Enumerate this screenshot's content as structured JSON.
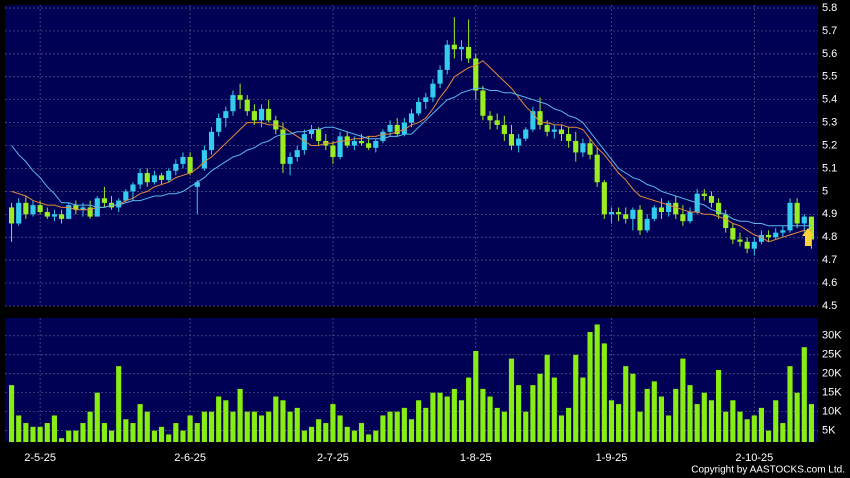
{
  "chart_data": {
    "type": "candlestick",
    "categories": [
      null,
      null,
      null,
      null,
      "2-5-25",
      null,
      null,
      null,
      null,
      null,
      null,
      null,
      null,
      null,
      null,
      null,
      null,
      null,
      null,
      null,
      null,
      null,
      null,
      null,
      null,
      "2-6-25",
      null,
      null,
      null,
      null,
      null,
      null,
      null,
      null,
      null,
      null,
      null,
      null,
      null,
      null,
      null,
      null,
      null,
      null,
      null,
      "2-7-25",
      null,
      null,
      null,
      null,
      null,
      null,
      null,
      null,
      null,
      null,
      null,
      null,
      null,
      null,
      null,
      null,
      null,
      null,
      null,
      "1-8-25",
      null,
      null,
      null,
      null,
      null,
      null,
      null,
      null,
      null,
      null,
      null,
      null,
      null,
      null,
      null,
      null,
      null,
      null,
      "1-9-25",
      null,
      null,
      null,
      null,
      null,
      null,
      null,
      null,
      null,
      null,
      null,
      null,
      null,
      null,
      null,
      null,
      null,
      null,
      null,
      "2-10-25",
      null,
      null,
      null,
      null,
      null,
      null,
      null,
      null
    ],
    "open": [
      4.93,
      4.86,
      4.95,
      4.9,
      4.94,
      4.91,
      4.89,
      4.9,
      4.88,
      4.94,
      4.92,
      4.93,
      4.89,
      4.97,
      4.95,
      4.93,
      4.96,
      5.0,
      5.03,
      5.08,
      5.04,
      5.07,
      5.05,
      5.09,
      5.12,
      5.15,
      5.02,
      5.1,
      5.18,
      5.26,
      5.32,
      5.35,
      5.42,
      5.4,
      5.35,
      5.31,
      5.36,
      5.31,
      5.27,
      5.12,
      5.15,
      5.18,
      5.25,
      5.27,
      5.22,
      5.2,
      5.15,
      5.24,
      5.2,
      5.22,
      5.21,
      5.19,
      5.22,
      5.26,
      5.29,
      5.25,
      5.3,
      5.34,
      5.39,
      5.41,
      5.47,
      5.53,
      5.64,
      5.62,
      5.63,
      5.58,
      5.44,
      5.33,
      5.31,
      5.29,
      5.25,
      5.2,
      5.23,
      5.27,
      5.35,
      5.29,
      5.26,
      5.27,
      5.25,
      5.22,
      5.17,
      5.21,
      5.16,
      5.04,
      4.9,
      4.91,
      4.9,
      4.88,
      4.92,
      4.83,
      4.88,
      4.93,
      4.91,
      4.95,
      4.9,
      4.87,
      4.91,
      4.99,
      4.98,
      4.95,
      4.9,
      4.84,
      4.79,
      4.78,
      4.75,
      4.78,
      4.81,
      4.8,
      4.82,
      4.83,
      4.95,
      4.86,
      4.89
    ],
    "high": [
      4.95,
      4.97,
      4.98,
      4.96,
      4.96,
      4.93,
      4.92,
      4.92,
      4.95,
      4.96,
      4.95,
      4.96,
      4.98,
      5.02,
      4.98,
      4.97,
      5.01,
      5.04,
      5.1,
      5.1,
      5.09,
      5.08,
      5.1,
      5.14,
      5.17,
      5.17,
      5.05,
      5.2,
      5.28,
      5.34,
      5.37,
      5.44,
      5.47,
      5.42,
      5.38,
      5.38,
      5.4,
      5.33,
      5.3,
      5.17,
      5.2,
      5.27,
      5.29,
      5.28,
      5.25,
      5.22,
      5.26,
      5.26,
      5.24,
      5.25,
      5.24,
      5.23,
      5.27,
      5.31,
      5.32,
      5.32,
      5.36,
      5.41,
      5.43,
      5.49,
      5.55,
      5.66,
      5.76,
      5.66,
      5.75,
      5.6,
      5.46,
      5.35,
      5.34,
      5.33,
      5.29,
      5.25,
      5.28,
      5.37,
      5.41,
      5.31,
      5.29,
      5.29,
      5.28,
      5.26,
      5.23,
      5.23,
      5.19,
      5.05,
      4.93,
      4.93,
      4.93,
      4.93,
      4.94,
      4.9,
      4.94,
      4.97,
      4.96,
      4.98,
      4.94,
      4.93,
      5.01,
      5.01,
      5.0,
      4.97,
      4.92,
      4.86,
      4.82,
      4.8,
      4.8,
      4.83,
      4.83,
      4.84,
      4.85,
      4.97,
      4.97,
      4.9,
      4.89
    ],
    "low": [
      4.78,
      4.85,
      4.88,
      4.89,
      4.9,
      4.88,
      4.87,
      4.86,
      4.88,
      4.9,
      4.89,
      4.88,
      4.89,
      4.93,
      4.92,
      4.91,
      4.95,
      4.96,
      5.01,
      5.02,
      5.03,
      5.03,
      5.04,
      5.07,
      5.1,
      5.07,
      4.9,
      5.09,
      5.16,
      5.24,
      5.28,
      5.33,
      5.36,
      5.33,
      5.29,
      5.28,
      5.3,
      5.25,
      5.08,
      5.07,
      5.13,
      5.16,
      5.23,
      5.2,
      5.18,
      5.12,
      5.14,
      5.19,
      5.18,
      5.2,
      5.18,
      5.17,
      5.21,
      5.24,
      5.24,
      5.24,
      5.28,
      5.33,
      5.36,
      5.39,
      5.45,
      5.51,
      5.58,
      5.57,
      5.56,
      5.4,
      5.31,
      5.27,
      5.27,
      5.22,
      5.18,
      5.17,
      5.22,
      5.26,
      5.27,
      5.24,
      5.23,
      5.22,
      5.19,
      5.13,
      5.15,
      5.14,
      5.02,
      4.88,
      4.86,
      4.87,
      4.86,
      4.83,
      4.81,
      4.82,
      4.87,
      4.88,
      4.89,
      4.88,
      4.85,
      4.86,
      4.9,
      4.96,
      4.93,
      4.88,
      4.82,
      4.77,
      4.76,
      4.73,
      4.72,
      4.77,
      4.78,
      4.79,
      4.8,
      4.82,
      4.84,
      4.82,
      4.75
    ],
    "close": [
      4.86,
      4.95,
      4.9,
      4.94,
      4.91,
      4.89,
      4.9,
      4.88,
      4.94,
      4.92,
      4.93,
      4.89,
      4.97,
      4.95,
      4.93,
      4.96,
      5.0,
      5.03,
      5.08,
      5.04,
      5.07,
      5.05,
      5.09,
      5.12,
      5.15,
      5.08,
      5.04,
      5.18,
      5.26,
      5.32,
      5.35,
      5.42,
      5.4,
      5.35,
      5.31,
      5.36,
      5.31,
      5.27,
      5.12,
      5.15,
      5.18,
      5.25,
      5.27,
      5.22,
      5.2,
      5.15,
      5.24,
      5.2,
      5.22,
      5.21,
      5.19,
      5.22,
      5.26,
      5.29,
      5.25,
      5.3,
      5.34,
      5.39,
      5.41,
      5.47,
      5.53,
      5.64,
      5.62,
      5.63,
      5.58,
      5.44,
      5.33,
      5.31,
      5.29,
      5.25,
      5.2,
      5.23,
      5.27,
      5.35,
      5.29,
      5.26,
      5.27,
      5.25,
      5.22,
      5.17,
      5.21,
      5.16,
      5.04,
      4.9,
      4.91,
      4.9,
      4.88,
      4.92,
      4.83,
      4.88,
      4.93,
      4.91,
      4.95,
      4.9,
      4.87,
      4.91,
      4.99,
      4.98,
      4.95,
      4.9,
      4.84,
      4.79,
      4.78,
      4.75,
      4.78,
      4.81,
      4.8,
      4.82,
      4.83,
      4.95,
      4.86,
      4.89,
      4.79
    ],
    "up_color": "#33ccee",
    "down_color": "#99ee22",
    "ma": [
      {
        "color": "#e8883a",
        "values": [
          5.0,
          4.99,
          4.98,
          4.96,
          4.95,
          4.94,
          4.94,
          4.93,
          4.93,
          4.92,
          4.92,
          4.92,
          4.93,
          4.93,
          4.94,
          4.94,
          4.96,
          4.97,
          4.99,
          5.0,
          5.02,
          5.03,
          5.04,
          5.06,
          5.07,
          5.08,
          5.1,
          5.13,
          5.15,
          5.18,
          5.21,
          5.24,
          5.27,
          5.3,
          5.3,
          5.3,
          5.29,
          5.29,
          5.28,
          5.26,
          5.24,
          5.22,
          5.2,
          5.2,
          5.21,
          5.21,
          5.22,
          5.22,
          5.23,
          5.23,
          5.24,
          5.24,
          5.25,
          5.25,
          5.26,
          5.27,
          5.29,
          5.3,
          5.32,
          5.36,
          5.41,
          5.45,
          5.5,
          5.52,
          5.54,
          5.55,
          5.57,
          5.54,
          5.51,
          5.48,
          5.45,
          5.41,
          5.37,
          5.34,
          5.3,
          5.3,
          5.29,
          5.29,
          5.28,
          5.28,
          5.27,
          5.23,
          5.19,
          5.16,
          5.12,
          5.08,
          5.05,
          5.01,
          4.98,
          4.97,
          4.96,
          4.95,
          4.94,
          4.93,
          4.92,
          4.91,
          4.91,
          4.9,
          4.9,
          4.89,
          4.88,
          4.86,
          4.85,
          4.83,
          4.81,
          4.8,
          4.78,
          4.79,
          4.8,
          4.81,
          4.82,
          4.83,
          4.83
        ]
      },
      {
        "color": "#5ab8f0",
        "values": [
          5.2,
          5.16,
          5.13,
          5.09,
          5.06,
          5.02,
          4.99,
          4.95,
          4.95,
          4.94,
          4.94,
          4.94,
          4.93,
          4.93,
          4.94,
          4.94,
          4.95,
          4.96,
          4.96,
          4.97,
          4.98,
          4.98,
          4.99,
          4.99,
          5.0,
          5.02,
          5.04,
          5.06,
          5.09,
          5.11,
          5.13,
          5.15,
          5.16,
          5.18,
          5.19,
          5.21,
          5.22,
          5.24,
          5.25,
          5.25,
          5.26,
          5.26,
          5.27,
          5.27,
          5.28,
          5.28,
          5.27,
          5.26,
          5.25,
          5.24,
          5.23,
          5.23,
          5.23,
          5.24,
          5.24,
          5.25,
          5.25,
          5.28,
          5.31,
          5.34,
          5.37,
          5.4,
          5.41,
          5.43,
          5.44,
          5.45,
          5.45,
          5.44,
          5.44,
          5.43,
          5.43,
          5.42,
          5.41,
          5.4,
          5.39,
          5.38,
          5.36,
          5.35,
          5.33,
          5.32,
          5.3,
          5.26,
          5.22,
          5.18,
          5.14,
          5.1,
          5.08,
          5.06,
          5.05,
          5.03,
          5.02,
          5.0,
          4.99,
          4.98,
          4.97,
          4.96,
          4.95,
          4.94,
          4.92,
          4.91,
          4.9,
          4.88,
          4.87,
          4.87,
          4.86,
          4.86,
          4.85,
          4.85,
          4.85,
          4.85,
          4.85,
          4.85,
          4.85
        ]
      }
    ],
    "ylim": [
      4.5,
      5.8
    ],
    "yticks": [
      4.5,
      4.6,
      4.7,
      4.8,
      4.9,
      5,
      5.1,
      5.2,
      5.3,
      5.4,
      5.5,
      5.6,
      5.7,
      5.8
    ],
    "grid": true,
    "background": "#000055",
    "volume": {
      "color": "#88ee11",
      "values": [
        17000,
        9000,
        7000,
        6000,
        6000,
        7000,
        9000,
        3000,
        5000,
        5000,
        7000,
        10000,
        15000,
        7000,
        5000,
        22000,
        8000,
        7000,
        12000,
        10000,
        5000,
        6000,
        4000,
        7000,
        5000,
        9000,
        7000,
        10000,
        10000,
        14000,
        13000,
        10000,
        16000,
        10000,
        10000,
        9000,
        10000,
        14000,
        13000,
        10000,
        11000,
        5000,
        6000,
        8000,
        7000,
        12000,
        9000,
        6000,
        5000,
        7000,
        4000,
        5000,
        9000,
        10000,
        10000,
        11000,
        8000,
        13000,
        11000,
        15000,
        15000,
        14000,
        16000,
        13000,
        19000,
        26000,
        16000,
        14000,
        11000,
        10000,
        24000,
        17000,
        10000,
        17000,
        20000,
        25000,
        19000,
        9000,
        11000,
        25000,
        19000,
        31000,
        33000,
        28000,
        13000,
        12000,
        22000,
        20000,
        10000,
        16000,
        18000,
        14000,
        9000,
        16000,
        24000,
        17000,
        12000,
        15000,
        13000,
        21000,
        10000,
        13000,
        10000,
        8000,
        9000,
        11000,
        5000,
        13000,
        7000,
        22000,
        15000,
        27000,
        12000
      ],
      "ylim": [
        2000,
        34700
      ],
      "yticks": [
        {
          "value": 5000,
          "label": "5K"
        },
        {
          "value": 10000,
          "label": "10K"
        },
        {
          "value": 15000,
          "label": "15K"
        },
        {
          "value": 20000,
          "label": "20K"
        },
        {
          "value": 25000,
          "label": "25K"
        },
        {
          "value": 30000,
          "label": "30K"
        }
      ]
    },
    "copyright": "Copyright by AASTOCKS.com Ltd."
  }
}
